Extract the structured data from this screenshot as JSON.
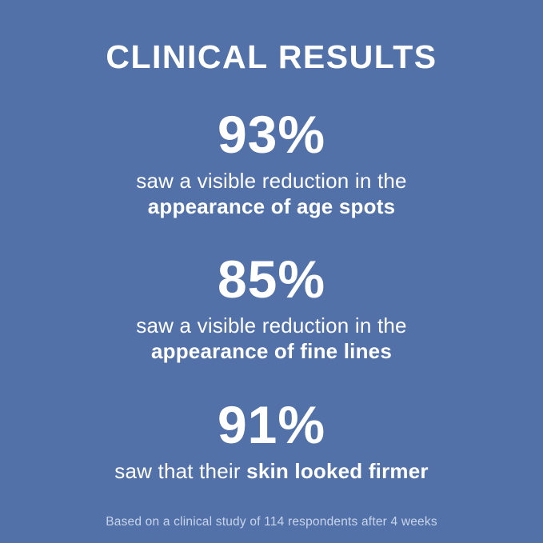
{
  "page": {
    "background_color": "#5271A9",
    "text_color": "#FFFFFF",
    "footnote_color": "#C9D5E9"
  },
  "title": "CLINICAL RESULTS",
  "stats": [
    {
      "value": "93%",
      "caption_line1": "saw a visible reduction in the",
      "caption_line2_bold": "appearance of age spots"
    },
    {
      "value": "85%",
      "caption_line1": "saw a visible reduction in the",
      "caption_line2_bold": "appearance of fine lines"
    },
    {
      "value": "91%",
      "caption_prefix": "saw that their",
      "caption_bold": "skin looked firmer"
    }
  ],
  "footnote": "Based on a clinical study of 114 respondents after 4 weeks"
}
